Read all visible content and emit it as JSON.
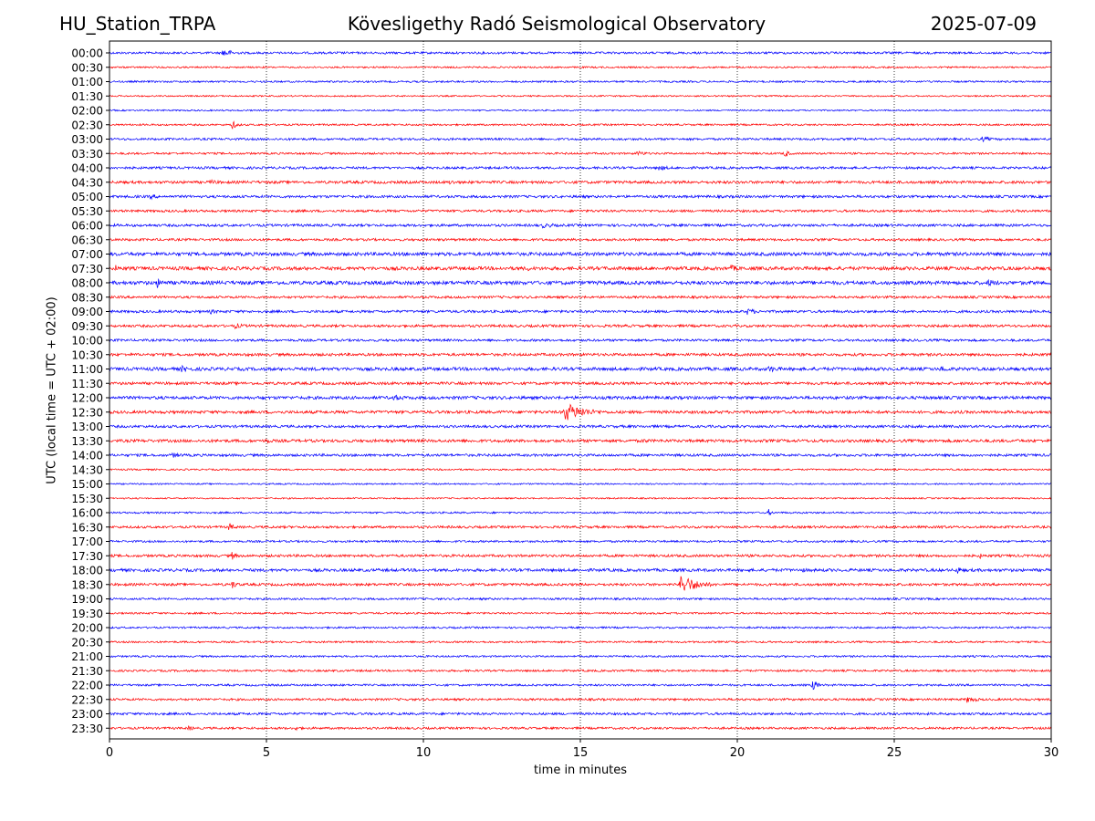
{
  "header": {
    "station": "HU_Station_TRPA",
    "observatory": "Kövesligethy Radó Seismological Observatory",
    "date": "2025-07-09"
  },
  "axes": {
    "ylabel": "UTC (local time = UTC + 02:00)",
    "xlabel": "time in minutes"
  },
  "colors": {
    "even_rows": "#0000ff",
    "odd_rows": "#ff0000",
    "grid": "#000000"
  },
  "chart_data": {
    "type": "line",
    "title": "Kövesligethy Radó Seismological Observatory",
    "xlabel": "time in minutes",
    "ylabel": "UTC (local time = UTC + 02:00)",
    "xlim": [
      0,
      30
    ],
    "x_ticks": [
      0,
      5,
      10,
      15,
      20,
      25,
      30
    ],
    "grid": "vertical dotted lines at 5-minute intervals",
    "rows": [
      "00:00",
      "00:30",
      "01:00",
      "01:30",
      "02:00",
      "02:30",
      "03:00",
      "03:30",
      "04:00",
      "04:30",
      "05:00",
      "05:30",
      "06:00",
      "06:30",
      "07:00",
      "07:30",
      "08:00",
      "08:30",
      "09:00",
      "09:30",
      "10:00",
      "10:30",
      "11:00",
      "11:30",
      "12:00",
      "12:30",
      "13:00",
      "13:30",
      "14:00",
      "14:30",
      "15:00",
      "15:30",
      "16:00",
      "16:30",
      "17:00",
      "17:30",
      "18:00",
      "18:30",
      "19:00",
      "19:30",
      "20:00",
      "20:30",
      "21:00",
      "21:30",
      "22:00",
      "22:30",
      "23:00",
      "23:30"
    ],
    "noise_levels": [
      1.2,
      0.9,
      1.0,
      0.8,
      0.8,
      1.0,
      1.2,
      1.1,
      1.3,
      1.5,
      1.4,
      1.3,
      1.4,
      1.3,
      1.9,
      1.9,
      2.0,
      1.3,
      1.4,
      1.4,
      1.3,
      1.5,
      1.8,
      1.5,
      1.7,
      1.6,
      1.4,
      1.6,
      1.4,
      0.9,
      0.8,
      0.8,
      1.0,
      1.3,
      1.1,
      1.4,
      1.6,
      1.4,
      1.1,
      1.0,
      1.0,
      1.0,
      1.0,
      1.1,
      1.1,
      1.2,
      1.3,
      1.2
    ],
    "events": [
      {
        "row": 0,
        "minute": 3.6,
        "amplitude": 5,
        "duration": 1.2
      },
      {
        "row": 0,
        "minute": 7.2,
        "amplitude": 2,
        "duration": 1.0
      },
      {
        "row": 5,
        "minute": 3.9,
        "amplitude": 5,
        "duration": 0.6
      },
      {
        "row": 6,
        "minute": 27.8,
        "amplitude": 3,
        "duration": 1.3
      },
      {
        "row": 7,
        "minute": 16.8,
        "amplitude": 3,
        "duration": 1.2
      },
      {
        "row": 7,
        "minute": 21.5,
        "amplitude": 5,
        "duration": 0.5
      },
      {
        "row": 8,
        "minute": 17.5,
        "amplitude": 3,
        "duration": 1.5
      },
      {
        "row": 9,
        "minute": 3.2,
        "amplitude": 3,
        "duration": 1.5
      },
      {
        "row": 9,
        "minute": 10.8,
        "amplitude": 3,
        "duration": 1.5
      },
      {
        "row": 10,
        "minute": 1.3,
        "amplitude": 3,
        "duration": 1.2
      },
      {
        "row": 12,
        "minute": 13.8,
        "amplitude": 3,
        "duration": 2.0
      },
      {
        "row": 14,
        "minute": 29.3,
        "amplitude": 3,
        "duration": 1.0
      },
      {
        "row": 15,
        "minute": 0.2,
        "amplitude": 4,
        "duration": 0.4
      },
      {
        "row": 15,
        "minute": 13.3,
        "amplitude": 3,
        "duration": 1.5
      },
      {
        "row": 15,
        "minute": 19.8,
        "amplitude": 4,
        "duration": 1.0
      },
      {
        "row": 16,
        "minute": 1.5,
        "amplitude": 6,
        "duration": 0.8
      },
      {
        "row": 16,
        "minute": 28.0,
        "amplitude": 4,
        "duration": 1.5
      },
      {
        "row": 18,
        "minute": 3.2,
        "amplitude": 3,
        "duration": 1.0
      },
      {
        "row": 18,
        "minute": 20.3,
        "amplitude": 4,
        "duration": 1.2
      },
      {
        "row": 19,
        "minute": 4.0,
        "amplitude": 3,
        "duration": 1.5
      },
      {
        "row": 22,
        "minute": 2.3,
        "amplitude": 4,
        "duration": 1.5
      },
      {
        "row": 22,
        "minute": 21.0,
        "amplitude": 4,
        "duration": 1.5
      },
      {
        "row": 22,
        "minute": 26.5,
        "amplitude": 4,
        "duration": 1.2
      },
      {
        "row": 24,
        "minute": 4.8,
        "amplitude": 3,
        "duration": 1.0
      },
      {
        "row": 24,
        "minute": 9.0,
        "amplitude": 4,
        "duration": 1.5
      },
      {
        "row": 25,
        "minute": 14.5,
        "amplitude": 11,
        "duration": 2.0
      },
      {
        "row": 27,
        "minute": 5.0,
        "amplitude": 3,
        "duration": 1.0
      },
      {
        "row": 27,
        "minute": 17.0,
        "amplitude": 3,
        "duration": 1.0
      },
      {
        "row": 28,
        "minute": 2.0,
        "amplitude": 3,
        "duration": 1.5
      },
      {
        "row": 32,
        "minute": 21.0,
        "amplitude": 4,
        "duration": 0.4
      },
      {
        "row": 33,
        "minute": 3.8,
        "amplitude": 5,
        "duration": 0.6
      },
      {
        "row": 33,
        "minute": 26.5,
        "amplitude": 3,
        "duration": 0.6
      },
      {
        "row": 35,
        "minute": 3.9,
        "amplitude": 5,
        "duration": 0.5
      },
      {
        "row": 35,
        "minute": 27.7,
        "amplitude": 4,
        "duration": 0.4
      },
      {
        "row": 36,
        "minute": 22.0,
        "amplitude": 3,
        "duration": 1.0
      },
      {
        "row": 36,
        "minute": 27.0,
        "amplitude": 6,
        "duration": 0.4
      },
      {
        "row": 37,
        "minute": 18.2,
        "amplitude": 12,
        "duration": 1.6
      },
      {
        "row": 37,
        "minute": 3.9,
        "amplitude": 5,
        "duration": 0.6
      },
      {
        "row": 44,
        "minute": 22.4,
        "amplitude": 7,
        "duration": 0.5
      },
      {
        "row": 45,
        "minute": 27.3,
        "amplitude": 4,
        "duration": 1.2
      },
      {
        "row": 46,
        "minute": 1.3,
        "amplitude": 3,
        "duration": 1.0
      },
      {
        "row": 47,
        "minute": 2.5,
        "amplitude": 3,
        "duration": 0.8
      },
      {
        "row": 47,
        "minute": 5.9,
        "amplitude": 3,
        "duration": 0.8
      }
    ]
  }
}
